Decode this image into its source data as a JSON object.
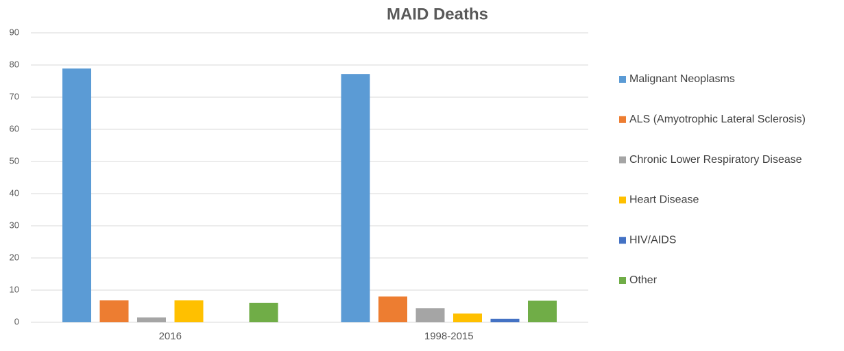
{
  "chart_data": {
    "type": "bar",
    "title": "MAID Deaths",
    "categories": [
      "2016",
      "1998-2015"
    ],
    "series": [
      {
        "name": "Malignant Neoplasms",
        "color": "#5b9bd5",
        "values": [
          78.9,
          77.2
        ]
      },
      {
        "name": "ALS (Amyotrophic Lateral Sclerosis)",
        "color": "#ed7d31",
        "values": [
          6.8,
          8.0
        ]
      },
      {
        "name": "Chronic Lower Respiratory Disease",
        "color": "#a5a5a5",
        "values": [
          1.5,
          4.4
        ]
      },
      {
        "name": "Heart Disease",
        "color": "#ffc000",
        "values": [
          6.8,
          2.7
        ]
      },
      {
        "name": "HIV/AIDS",
        "color": "#4472c4",
        "values": [
          0,
          1.1
        ]
      },
      {
        "name": "Other",
        "color": "#70ad47",
        "values": [
          6.0,
          6.7
        ]
      }
    ],
    "ylim": [
      0,
      90
    ],
    "yticks": [
      0,
      10,
      20,
      30,
      40,
      50,
      60,
      70,
      80,
      90
    ],
    "grid": true,
    "legend": "right"
  }
}
